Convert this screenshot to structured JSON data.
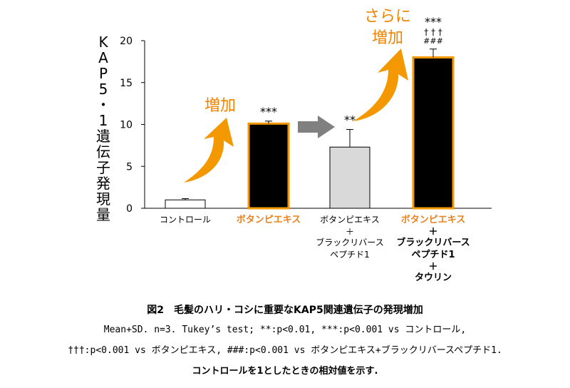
{
  "chart_data": {
    "type": "bar",
    "ylabel": "KAP5・1遺伝子発現量",
    "ylim": [
      0,
      20
    ],
    "yticks": [
      0,
      5,
      10,
      15,
      20
    ],
    "grid": false,
    "bars": [
      {
        "category_lines": [
          "コントロール"
        ],
        "value": 1.0,
        "error": 0.15,
        "fill": "#ffffff",
        "stroke": "#000000",
        "label_color": "#000000",
        "label_bold": false,
        "significance": []
      },
      {
        "category_lines": [
          "ボタンピエキス"
        ],
        "value": 10.1,
        "error": 0.3,
        "fill": "#000000",
        "stroke": "#f39800",
        "label_color": "#e8821e",
        "label_bold": true,
        "significance": [
          "***"
        ]
      },
      {
        "category_lines": [
          "ボタンピエキス",
          "＋",
          "ブラックリバース",
          "ペプチド1"
        ],
        "value": 7.3,
        "error": 2.1,
        "fill": "#d9d9d9",
        "stroke": "#000000",
        "label_color": "#000000",
        "label_bold": false,
        "significance": [
          "**"
        ]
      },
      {
        "category_lines": [
          "ボタンピエキス",
          "＋",
          "ブラックリバース",
          "ペプチド1",
          "＋",
          "タウリン"
        ],
        "value": 18.0,
        "error": 1.0,
        "fill": "#000000",
        "stroke": "#f39800",
        "label_color": "#e8821e",
        "label_bold": true,
        "significance": [
          "***",
          "† † †",
          "###"
        ]
      }
    ],
    "annotations": [
      {
        "text": "増加",
        "color": "#f08300"
      },
      {
        "text": "さらに",
        "color": "#f08300"
      },
      {
        "text": "増加",
        "color": "#f08300"
      }
    ],
    "colors": {
      "accent_orange": "#f39800",
      "arrow_gray": "#808080"
    }
  },
  "caption": {
    "title": "図2　毛髪のハリ・コシに重要なKAP5関連遺伝子の発現増加",
    "line1": "Mean+SD. n=3. Tukey’s test; **:p<0.01, ***:p<0.001 vs コントロール,",
    "line2": "†††:p<0.001 vs ボタンピエキス, ###:p<0.001 vs ボタンピエキス+ブラックリバースペプチド1.",
    "line3": "コントロールを1としたときの相対値を示す."
  }
}
